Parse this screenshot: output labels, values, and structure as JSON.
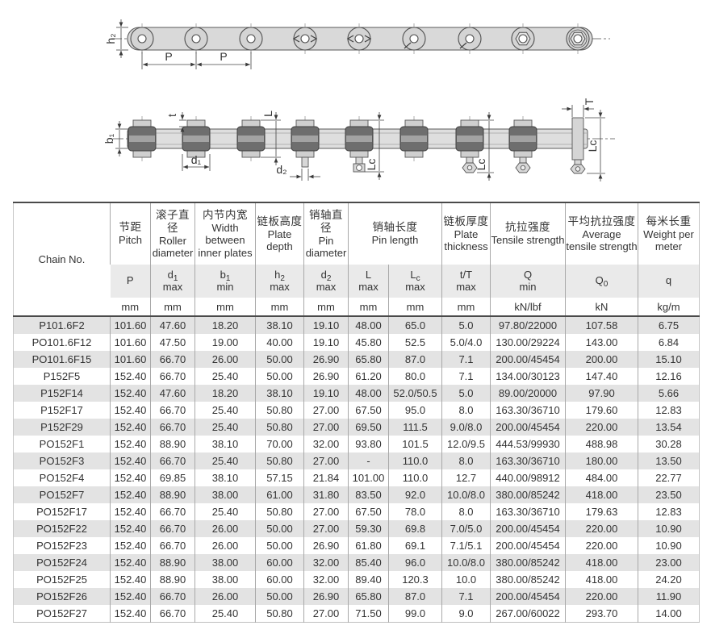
{
  "colors": {
    "row_stripe": "#e3e3e3",
    "header_stripe": "#eaeaea",
    "border_dark": "#4a4a4a",
    "border_light": "#a9a9a9",
    "ink": "#333333"
  },
  "diagram": {
    "labels": {
      "h2": "h₂",
      "P": "P",
      "b1": "b₁",
      "t": "t",
      "d1": "d₁",
      "d2": "d₂",
      "L": "L",
      "Lc": "Lc",
      "T": "T"
    }
  },
  "table": {
    "chain_col_header": "Chain No.",
    "header_groups": [
      {
        "cn": "节距",
        "en": "Pitch",
        "colspan": 1
      },
      {
        "cn": "滚子直径",
        "en": "Roller diameter",
        "colspan": 1
      },
      {
        "cn": "内节内宽",
        "en": "Width between inner plates",
        "colspan": 1
      },
      {
        "cn": "链板高度",
        "en": "Plate depth",
        "colspan": 1
      },
      {
        "cn": "销轴直径",
        "en": "Pin diameter",
        "colspan": 1
      },
      {
        "cn": "销轴长度",
        "en": "Pin length",
        "colspan": 2
      },
      {
        "cn": "链板厚度",
        "en": "Plate thickness",
        "colspan": 1
      },
      {
        "cn": "抗拉强度",
        "en": "Tensile strength",
        "colspan": 1
      },
      {
        "cn": "平均抗拉强度",
        "en": "Average tensile strength",
        "colspan": 1
      },
      {
        "cn": "每米长重",
        "en": "Weight per meter",
        "colspan": 1
      }
    ],
    "symbols": [
      {
        "base": "P"
      },
      {
        "base": "d",
        "sub": "1",
        "line2": "max"
      },
      {
        "base": "b",
        "sub": "1",
        "line2": "min"
      },
      {
        "base": "h",
        "sub": "2",
        "line2": "max"
      },
      {
        "base": "d",
        "sub": "2",
        "line2": "max"
      },
      {
        "base": "L",
        "line2": "max"
      },
      {
        "base": "L",
        "sub": "c",
        "line2": "max"
      },
      {
        "base": "t/T",
        "line2": "max"
      },
      {
        "base": "Q",
        "line2": "min"
      },
      {
        "base": "Q",
        "sub": "0"
      },
      {
        "base": "q"
      }
    ],
    "units": [
      "mm",
      "mm",
      "mm",
      "mm",
      "mm",
      "mm",
      "mm",
      "mm",
      "kN/lbf",
      "kN",
      "kg/m"
    ],
    "rows": [
      [
        "P101.6F2",
        "101.60",
        "47.60",
        "18.20",
        "38.10",
        "19.10",
        "48.00",
        "65.0",
        "5.0",
        "97.80/22000",
        "107.58",
        "6.75"
      ],
      [
        "PO101.6F12",
        "101.60",
        "47.50",
        "19.00",
        "40.00",
        "19.10",
        "45.80",
        "52.5",
        "5.0/4.0",
        "130.00/29224",
        "143.00",
        "6.84"
      ],
      [
        "PO101.6F15",
        "101.60",
        "66.70",
        "26.00",
        "50.00",
        "26.90",
        "65.80",
        "87.0",
        "7.1",
        "200.00/45454",
        "200.00",
        "15.10"
      ],
      [
        "P152F5",
        "152.40",
        "66.70",
        "25.40",
        "50.00",
        "26.90",
        "61.20",
        "80.0",
        "7.1",
        "134.00/30123",
        "147.40",
        "12.16"
      ],
      [
        "P152F14",
        "152.40",
        "47.60",
        "18.20",
        "38.10",
        "19.10",
        "48.00",
        "52.0/50.5",
        "5.0",
        "89.00/20000",
        "97.90",
        "5.66"
      ],
      [
        "P152F17",
        "152.40",
        "66.70",
        "25.40",
        "50.80",
        "27.00",
        "67.50",
        "95.0",
        "8.0",
        "163.30/36710",
        "179.60",
        "12.83"
      ],
      [
        "P152F29",
        "152.40",
        "66.70",
        "25.40",
        "50.80",
        "27.00",
        "69.50",
        "111.5",
        "9.0/8.0",
        "200.00/45454",
        "220.00",
        "13.54"
      ],
      [
        "PO152F1",
        "152.40",
        "88.90",
        "38.10",
        "70.00",
        "32.00",
        "93.80",
        "101.5",
        "12.0/9.5",
        "444.53/99930",
        "488.98",
        "30.28"
      ],
      [
        "PO152F3",
        "152.40",
        "66.70",
        "25.40",
        "50.80",
        "27.00",
        "-",
        "110.0",
        "8.0",
        "163.30/36710",
        "180.00",
        "13.50"
      ],
      [
        "PO152F4",
        "152.40",
        "69.85",
        "38.10",
        "57.15",
        "21.84",
        "101.00",
        "110.0",
        "12.7",
        "440.00/98912",
        "484.00",
        "22.77"
      ],
      [
        "PO152F7",
        "152.40",
        "88.90",
        "38.00",
        "61.00",
        "31.80",
        "83.50",
        "92.0",
        "10.0/8.0",
        "380.00/85242",
        "418.00",
        "23.50"
      ],
      [
        "PO152F17",
        "152.40",
        "66.70",
        "25.40",
        "50.80",
        "27.00",
        "67.50",
        "78.0",
        "8.0",
        "163.30/36710",
        "179.63",
        "12.83"
      ],
      [
        "PO152F22",
        "152.40",
        "66.70",
        "26.00",
        "50.00",
        "27.00",
        "59.30",
        "69.8",
        "7.0/5.0",
        "200.00/45454",
        "220.00",
        "10.90"
      ],
      [
        "PO152F23",
        "152.40",
        "66.70",
        "26.00",
        "50.00",
        "26.90",
        "61.80",
        "69.1",
        "7.1/5.1",
        "200.00/45454",
        "220.00",
        "10.90"
      ],
      [
        "PO152F24",
        "152.40",
        "88.90",
        "38.00",
        "60.00",
        "32.00",
        "85.40",
        "96.0",
        "10.0/8.0",
        "380.00/85242",
        "418.00",
        "23.00"
      ],
      [
        "PO152F25",
        "152.40",
        "88.90",
        "38.00",
        "60.00",
        "32.00",
        "89.40",
        "120.3",
        "10.0",
        "380.00/85242",
        "418.00",
        "24.20"
      ],
      [
        "PO152F26",
        "152.40",
        "66.70",
        "26.00",
        "50.00",
        "26.90",
        "65.80",
        "87.0",
        "7.1",
        "200.00/45454",
        "220.00",
        "11.90"
      ],
      [
        "PO152F27",
        "152.40",
        "66.70",
        "25.40",
        "50.80",
        "27.00",
        "71.50",
        "99.0",
        "9.0",
        "267.00/60022",
        "293.70",
        "14.00"
      ]
    ]
  }
}
